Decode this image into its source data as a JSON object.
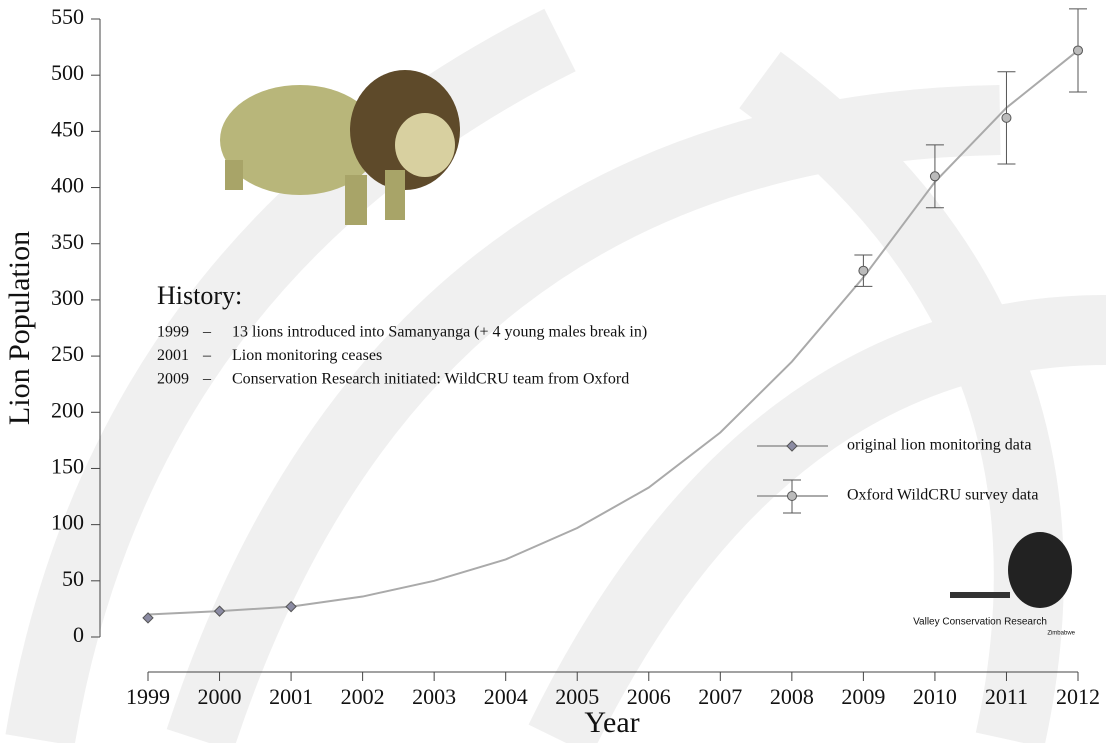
{
  "chart_data": {
    "type": "line",
    "x_label": "Year",
    "y_label": "Lion Population",
    "xlim": [
      1999,
      2012
    ],
    "xticks": [
      1999,
      2000,
      2001,
      2002,
      2003,
      2004,
      2005,
      2006,
      2007,
      2008,
      2009,
      2010,
      2011,
      2012
    ],
    "ylim": [
      0,
      550
    ],
    "yticks": [
      0,
      50,
      100,
      150,
      200,
      250,
      300,
      350,
      400,
      450,
      500,
      550
    ],
    "curve": {
      "color": "#aaaaaa",
      "x": [
        1999,
        2000,
        2001,
        2002,
        2003,
        2004,
        2005,
        2006,
        2007,
        2008,
        2009,
        2010,
        2011,
        2012
      ],
      "values": [
        20,
        23,
        27,
        36,
        50,
        69,
        97,
        133,
        182,
        245,
        320,
        405,
        471,
        522
      ]
    },
    "series": [
      {
        "name": "original lion monitoring data",
        "color": "#8b8ba3",
        "marker": "diamond",
        "x": [
          1999,
          2000,
          2001
        ],
        "values": [
          17,
          23,
          27
        ]
      },
      {
        "name": "Oxford WildCRU survey data",
        "color": "#bbbbbb",
        "marker": "circle",
        "x": [
          2009,
          2010,
          2011,
          2012
        ],
        "values": [
          326,
          410,
          462,
          522
        ],
        "errors": [
          14,
          28,
          41,
          37
        ]
      }
    ],
    "annotations": {
      "title": "History:",
      "entries": [
        [
          "1999",
          "–",
          "13 lions introduced into Samanyanga (+ 4 young males break in)"
        ],
        [
          "2001",
          "–",
          "Lion monitoring ceases"
        ],
        [
          "2009",
          "–",
          "Conservation Research initiated: WildCRU team from Oxford"
        ]
      ]
    },
    "logo": {
      "name": "Valley Conservation Research",
      "country": "Zimbabwe"
    }
  }
}
